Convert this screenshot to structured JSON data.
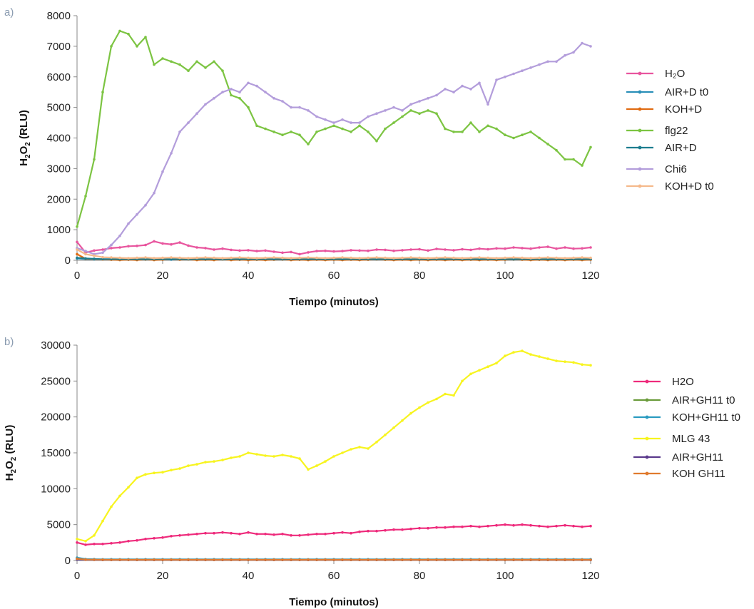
{
  "chart_data": [
    {
      "type": "line",
      "panel_label": "a)",
      "xlabel": "Tiempo (minutos)",
      "ylabel": "H2O2 (RLU)",
      "xlim": [
        0,
        120
      ],
      "ylim": [
        0,
        8000
      ],
      "xticks": [
        0,
        20,
        40,
        60,
        80,
        100,
        120
      ],
      "yticks": [
        0,
        1000,
        2000,
        3000,
        4000,
        5000,
        6000,
        7000,
        8000
      ],
      "grid": false,
      "legend_position": "right",
      "x": [
        0,
        2,
        4,
        6,
        8,
        10,
        12,
        14,
        16,
        18,
        20,
        22,
        24,
        26,
        28,
        30,
        32,
        34,
        36,
        38,
        40,
        42,
        44,
        46,
        48,
        50,
        52,
        54,
        56,
        58,
        60,
        62,
        64,
        66,
        68,
        70,
        72,
        74,
        76,
        78,
        80,
        82,
        84,
        86,
        88,
        90,
        92,
        94,
        96,
        98,
        100,
        102,
        104,
        106,
        108,
        110,
        112,
        114,
        116,
        118,
        120
      ],
      "series": [
        {
          "name": "H₂O",
          "color": "#e8559e",
          "values": [
            600,
            250,
            320,
            350,
            400,
            420,
            460,
            470,
            500,
            620,
            550,
            520,
            580,
            480,
            420,
            400,
            350,
            380,
            340,
            320,
            330,
            300,
            320,
            280,
            250,
            270,
            200,
            260,
            300,
            310,
            290,
            300,
            330,
            320,
            310,
            350,
            340,
            310,
            330,
            350,
            360,
            320,
            370,
            350,
            330,
            360,
            340,
            380,
            360,
            390,
            380,
            420,
            400,
            380,
            420,
            440,
            380,
            420,
            380,
            390,
            420
          ]
        },
        {
          "name": "AIR+D t0",
          "color": "#2a8fb8",
          "values": [
            60,
            40,
            30,
            30,
            25,
            30,
            25,
            30,
            25,
            30,
            30,
            25,
            30,
            30,
            25,
            30,
            25,
            30,
            30,
            25,
            30,
            25,
            30,
            30,
            25,
            30,
            25,
            30,
            30,
            25,
            30,
            25,
            30,
            30,
            25,
            30,
            25,
            30,
            30,
            25,
            30,
            25,
            30,
            30,
            25,
            30,
            25,
            30,
            30,
            25,
            30,
            25,
            30,
            30,
            25,
            30,
            25,
            30,
            30,
            25,
            30
          ]
        },
        {
          "name": "KOH+D",
          "color": "#e06b12",
          "values": [
            200,
            50,
            40,
            30,
            20,
            10,
            20,
            10,
            30,
            10,
            20,
            40,
            20,
            30,
            10,
            20,
            10,
            30,
            10,
            20,
            10,
            20,
            10,
            20,
            30,
            10,
            20,
            10,
            20,
            10,
            20,
            10,
            20,
            10,
            20,
            30,
            20,
            10,
            20,
            10,
            20,
            10,
            20,
            10,
            20,
            10,
            20,
            10,
            20,
            10,
            20,
            30,
            20,
            10,
            20,
            10,
            20,
            10,
            20,
            10,
            20
          ]
        },
        {
          "name": "flg22",
          "color": "#7cc442",
          "values": [
            1100,
            2100,
            3300,
            5500,
            7000,
            7500,
            7400,
            7000,
            7300,
            6400,
            6600,
            6500,
            6400,
            6200,
            6500,
            6300,
            6500,
            6200,
            5400,
            5300,
            5000,
            4400,
            4300,
            4200,
            4100,
            4200,
            4100,
            3800,
            4200,
            4300,
            4400,
            4300,
            4200,
            4400,
            4200,
            3900,
            4300,
            4500,
            4700,
            4900,
            4800,
            4900,
            4800,
            4300,
            4200,
            4200,
            4500,
            4200,
            4400,
            4300,
            4100,
            4000,
            4100,
            4200,
            4000,
            3800,
            3600,
            3300,
            3300,
            3100,
            3700
          ]
        },
        {
          "name": "AIR+D",
          "color": "#1c7d8f",
          "values": [
            80,
            60,
            50,
            40,
            40,
            35,
            40,
            35,
            40,
            35,
            40,
            35,
            40,
            35,
            40,
            35,
            40,
            35,
            40,
            35,
            40,
            35,
            40,
            35,
            40,
            35,
            40,
            35,
            40,
            35,
            40,
            35,
            40,
            35,
            40,
            35,
            40,
            35,
            40,
            35,
            40,
            35,
            40,
            35,
            40,
            35,
            40,
            35,
            40,
            35,
            40,
            35,
            40,
            35,
            40,
            35,
            40,
            35,
            40,
            35,
            40
          ]
        },
        {
          "name": "Chi6",
          "color": "#b39ddb",
          "values": [
            400,
            300,
            200,
            250,
            500,
            800,
            1200,
            1500,
            1800,
            2200,
            2900,
            3500,
            4200,
            4500,
            4800,
            5100,
            5300,
            5500,
            5600,
            5500,
            5800,
            5700,
            5500,
            5300,
            5200,
            5000,
            5000,
            4900,
            4700,
            4600,
            4500,
            4600,
            4500,
            4500,
            4700,
            4800,
            4900,
            5000,
            4900,
            5100,
            5200,
            5300,
            5400,
            5600,
            5500,
            5700,
            5600,
            5800,
            5100,
            5900,
            6000,
            6100,
            6200,
            6300,
            6400,
            6500,
            6500,
            6700,
            6800,
            7100,
            7000
          ]
        },
        {
          "name": "KOH+D t0",
          "color": "#f5b98b",
          "values": [
            350,
            200,
            150,
            100,
            90,
            80,
            70,
            80,
            90,
            70,
            80,
            90,
            80,
            70,
            80,
            90,
            80,
            70,
            80,
            90,
            80,
            70,
            80,
            90,
            80,
            70,
            80,
            90,
            80,
            70,
            80,
            90,
            80,
            70,
            80,
            90,
            80,
            70,
            80,
            90,
            80,
            70,
            80,
            90,
            80,
            70,
            80,
            90,
            80,
            70,
            80,
            90,
            80,
            70,
            80,
            90,
            80,
            70,
            80,
            90,
            80
          ]
        }
      ]
    },
    {
      "type": "line",
      "panel_label": "b)",
      "xlabel": "Tiempo (minutos)",
      "ylabel": "H2O2 (RLU)",
      "xlim": [
        0,
        120
      ],
      "ylim": [
        0,
        30000
      ],
      "xticks": [
        0,
        20,
        40,
        60,
        80,
        100,
        120
      ],
      "yticks": [
        0,
        5000,
        10000,
        15000,
        20000,
        25000,
        30000
      ],
      "grid": false,
      "legend_position": "right",
      "x": [
        0,
        2,
        4,
        6,
        8,
        10,
        12,
        14,
        16,
        18,
        20,
        22,
        24,
        26,
        28,
        30,
        32,
        34,
        36,
        38,
        40,
        42,
        44,
        46,
        48,
        50,
        52,
        54,
        56,
        58,
        60,
        62,
        64,
        66,
        68,
        70,
        72,
        74,
        76,
        78,
        80,
        82,
        84,
        86,
        88,
        90,
        92,
        94,
        96,
        98,
        100,
        102,
        104,
        106,
        108,
        110,
        112,
        114,
        116,
        118,
        120
      ],
      "series": [
        {
          "name": "H2O",
          "color": "#ee2a7b",
          "values": [
            2500,
            2200,
            2300,
            2300,
            2400,
            2500,
            2700,
            2800,
            3000,
            3100,
            3200,
            3400,
            3500,
            3600,
            3700,
            3800,
            3800,
            3900,
            3800,
            3700,
            3900,
            3700,
            3700,
            3600,
            3700,
            3500,
            3500,
            3600,
            3700,
            3700,
            3800,
            3900,
            3800,
            4000,
            4100,
            4100,
            4200,
            4300,
            4300,
            4400,
            4500,
            4500,
            4600,
            4600,
            4700,
            4700,
            4800,
            4700,
            4800,
            4900,
            5000,
            4900,
            5000,
            4900,
            4800,
            4700,
            4800,
            4900,
            4800,
            4700,
            4800
          ]
        },
        {
          "name": "AIR+GH11 t0",
          "color": "#6a9b3a",
          "values": [
            300,
            150,
            150,
            120,
            120,
            110,
            120,
            110,
            120,
            110,
            120,
            110,
            120,
            110,
            120,
            110,
            120,
            110,
            120,
            110,
            120,
            110,
            120,
            110,
            120,
            110,
            120,
            110,
            120,
            110,
            120,
            110,
            120,
            110,
            120,
            110,
            120,
            110,
            120,
            110,
            120,
            110,
            120,
            110,
            120,
            110,
            120,
            110,
            120,
            110,
            120,
            110,
            120,
            110,
            120,
            110,
            120,
            110,
            120,
            110,
            120
          ]
        },
        {
          "name": "KOH+GH11 t0",
          "color": "#2a9bc0",
          "values": [
            400,
            200,
            180,
            160,
            170,
            160,
            170,
            160,
            170,
            160,
            170,
            160,
            170,
            160,
            170,
            160,
            170,
            160,
            170,
            160,
            170,
            160,
            170,
            160,
            170,
            160,
            170,
            160,
            170,
            160,
            170,
            160,
            170,
            160,
            170,
            160,
            170,
            160,
            170,
            160,
            170,
            160,
            170,
            160,
            170,
            160,
            170,
            160,
            170,
            160,
            170,
            160,
            170,
            160,
            170,
            160,
            170,
            160,
            170,
            160,
            170
          ]
        },
        {
          "name": "MLG 43",
          "color": "#f7f41f",
          "values": [
            3000,
            2700,
            3500,
            5500,
            7500,
            9000,
            10200,
            11500,
            12000,
            12200,
            12300,
            12600,
            12800,
            13200,
            13400,
            13700,
            13800,
            14000,
            14300,
            14500,
            15000,
            14800,
            14600,
            14500,
            14700,
            14500,
            14200,
            12700,
            13200,
            13800,
            14500,
            15000,
            15500,
            15800,
            15600,
            16500,
            17500,
            18500,
            19500,
            20500,
            21300,
            22000,
            22500,
            23200,
            23000,
            25000,
            26000,
            26500,
            27000,
            27500,
            28500,
            29000,
            29200,
            28700,
            28400,
            28100,
            27800,
            27700,
            27600,
            27300,
            27200
          ]
        },
        {
          "name": "AIR+GH11",
          "color": "#5b3a8c",
          "values": [
            150,
            100,
            90,
            80,
            80,
            75,
            80,
            75,
            80,
            75,
            80,
            75,
            80,
            75,
            80,
            75,
            80,
            75,
            80,
            75,
            80,
            75,
            80,
            75,
            80,
            75,
            80,
            75,
            80,
            75,
            80,
            75,
            80,
            75,
            80,
            75,
            80,
            75,
            80,
            75,
            80,
            75,
            80,
            75,
            80,
            75,
            80,
            75,
            80,
            75,
            80,
            75,
            80,
            75,
            80,
            75,
            80,
            75,
            80,
            75,
            80
          ]
        },
        {
          "name": "KOH GH11",
          "color": "#e07a2e",
          "values": [
            250,
            130,
            120,
            110,
            100,
            110,
            100,
            110,
            100,
            110,
            100,
            110,
            100,
            110,
            100,
            110,
            100,
            110,
            100,
            110,
            100,
            110,
            100,
            110,
            100,
            110,
            100,
            110,
            100,
            110,
            100,
            110,
            100,
            110,
            100,
            110,
            100,
            110,
            100,
            110,
            100,
            110,
            100,
            110,
            100,
            110,
            100,
            110,
            100,
            110,
            100,
            110,
            100,
            110,
            100,
            110,
            100,
            110,
            100,
            110,
            100
          ]
        }
      ]
    }
  ]
}
